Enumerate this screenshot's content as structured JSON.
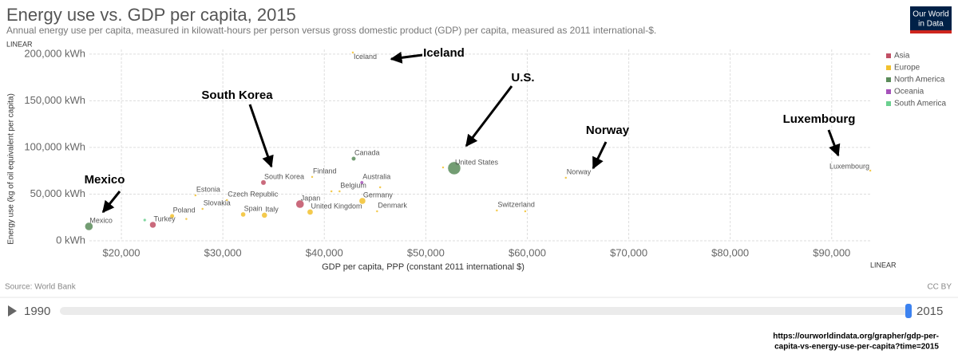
{
  "chart_data": {
    "type": "scatter",
    "title": "Energy use vs. GDP per capita, 2015",
    "subtitle": "Annual energy use per capita, measured in kilowatt-hours per person versus gross domestic product (GDP) per capita, measured as 2011 international-$.",
    "y_scale_label": "LINEAR",
    "x_scale_label": "LINEAR",
    "y_label": "Energy use (kg of oil equivalent per capita)",
    "x_label": "GDP per capita, PPP (constant 2011 international $)",
    "source": "Source: World Bank",
    "license": "CC BY",
    "logo": [
      "Our World",
      "in Data"
    ],
    "timeline": {
      "start": "1990",
      "end": "2015"
    },
    "url": [
      "https://ourworldindata.org/grapher/gdp-per-",
      "capita-vs-energy-use-per-capita?time=2015"
    ],
    "annotations": [
      "Iceland",
      "South Korea",
      "U.S.",
      "Norway",
      "Luxembourg",
      "Mexico"
    ],
    "xlim": [
      16850,
      93950
    ],
    "ylim": [
      0,
      205000
    ],
    "grid": true,
    "legend": "right",
    "xticks": [
      {
        "value": 20000,
        "label": "$20,000"
      },
      {
        "value": 30000,
        "label": "$30,000"
      },
      {
        "value": 40000,
        "label": "$40,000"
      },
      {
        "value": 50000,
        "label": "$50,000"
      },
      {
        "value": 60000,
        "label": "$60,000"
      },
      {
        "value": 70000,
        "label": "$70,000"
      },
      {
        "value": 80000,
        "label": "$80,000"
      },
      {
        "value": 90000,
        "label": "$90,000"
      }
    ],
    "yticks": [
      {
        "value": 0,
        "label": "0 kWh"
      },
      {
        "value": 50000,
        "label": "50,000 kWh"
      },
      {
        "value": 100000,
        "label": "100,000 kWh"
      },
      {
        "value": 150000,
        "label": "150,000 kWh"
      },
      {
        "value": 200000,
        "label": "200,000 kWh"
      }
    ],
    "series": [
      {
        "name": "Asia",
        "color": "#c15065",
        "x": [
          34000,
          37600,
          23100
        ],
        "values": [
          62400,
          39300,
          17100
        ],
        "sizes": [
          51,
          127,
          78
        ],
        "labels": [
          "South Korea",
          "Japan",
          "Turkey"
        ]
      },
      {
        "name": "Europe",
        "color": "#f2c12e",
        "x": [
          42810,
          38800,
          41500,
          43750,
          63800,
          93800,
          57000,
          45200,
          38600,
          34100,
          32000,
          30400,
          27300,
          28000,
          25000,
          26400,
          40700,
          45500,
          59800,
          51700
        ],
        "values": [
          201700,
          68400,
          53000,
          42700,
          67500,
          75200,
          32500,
          31600,
          30800,
          27400,
          28200,
          43600,
          48700,
          34200,
          26500,
          23400,
          53000,
          57300,
          31600,
          78600
        ],
        "sizes": [
          0.33,
          5.5,
          11.3,
          81.7,
          5.2,
          0.57,
          8.3,
          5.7,
          65,
          60.7,
          46.4,
          10.5,
          1.3,
          5.4,
          38,
          4.2,
          8.6,
          1.2,
          0.6,
          0.5
        ],
        "labels": [
          "Iceland",
          "Finland",
          "Belgium",
          "Germany",
          "Norway",
          "Luxembourg",
          "Switzerland",
          "Denmark",
          "United Kingdom",
          "Italy",
          "Spain",
          "Czech Republic",
          "Estonia",
          "Slovakia",
          "Poland",
          null,
          null,
          null,
          null,
          null
        ]
      },
      {
        "name": "North America",
        "color": "#5b8c5a",
        "x": [
          42890,
          52800,
          16800
        ],
        "values": [
          88000,
          77800,
          15400
        ],
        "sizes": [
          36,
          321,
          125
        ],
        "labels": [
          "Canada",
          "United States",
          "Mexico"
        ]
      },
      {
        "name": "Oceania",
        "color": "#a652ba",
        "x": [
          43700
        ],
        "values": [
          62400
        ],
        "sizes": [
          23.8
        ],
        "labels": [
          "Australia"
        ]
      },
      {
        "name": "South America",
        "color": "#6bd08f",
        "x": [
          22300
        ],
        "values": [
          22200
        ],
        "sizes": [
          18
        ],
        "labels": [
          null
        ]
      }
    ]
  }
}
